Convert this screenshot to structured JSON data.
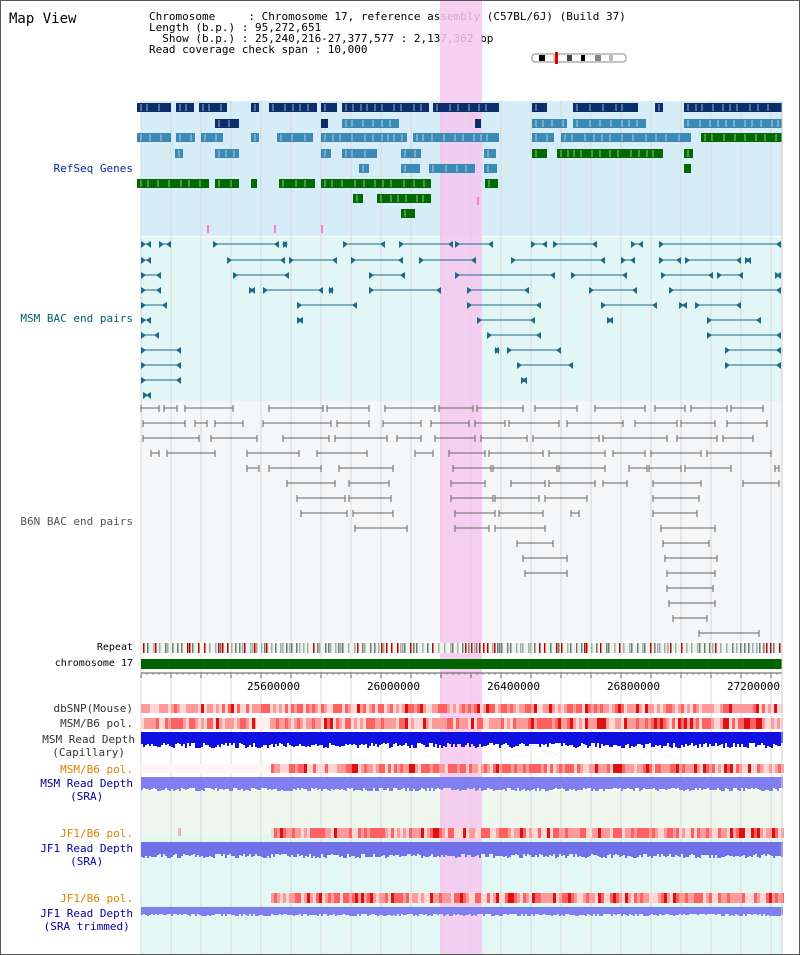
{
  "view_title": "Map View",
  "info": {
    "line1": "Chromosome     : Chromosome 17, reference assembly (C57BL/6J) (Build 37)",
    "line2": "Length (b.p.) : 95,272,651",
    "line3": "  Show (b.p.) : 25,240,216-27,377,577 : 2,137,362 bp",
    "line4": "Read coverage check span : 10,000"
  },
  "tracks": {
    "refseq": "RefSeq Genes",
    "msm_bac": "MSM BAC end pairs",
    "b6n_bac": "B6N BAC end pairs",
    "repeat": "Repeat",
    "chromosome": "chromosome 17",
    "dbsnp": "dbSNP(Mouse)",
    "msm_b6_pol_1": "MSM/B6 pol.",
    "msm_depth_cap_1": "MSM Read Depth",
    "msm_depth_cap_2": "(Capillary)",
    "msm_b6_pol_2": "MSM/B6 pol.",
    "msm_depth_sra_1": "MSM Read Depth",
    "msm_depth_sra_2": "(SRA)",
    "jf1_b6_pol_1": "JF1/B6 pol.",
    "jf1_depth_sra_1": "JF1 Read Depth",
    "jf1_depth_sra_2": "(SRA)",
    "jf1_b6_pol_2": "JF1/B6 pol.",
    "jf1_depth_trim_1": "JF1 Read Depth",
    "jf1_depth_trim_2": "(SRA trimmed)"
  },
  "axis": {
    "ticks": [
      "25600000",
      "26000000",
      "26400000",
      "26800000",
      "27200000"
    ]
  },
  "colors": {
    "refseq_dark": "#0b2d6b",
    "refseq_mid": "#3b8ab5",
    "refseq_green": "#006a00",
    "msm_bac": "#1a6a8a",
    "b6n_bac": "#666666",
    "highlight": "#f5c7ee",
    "chromosome_bar": "#006400",
    "label_navy": "#000099",
    "label_teal": "#006070",
    "label_orange": "#e08000"
  }
}
